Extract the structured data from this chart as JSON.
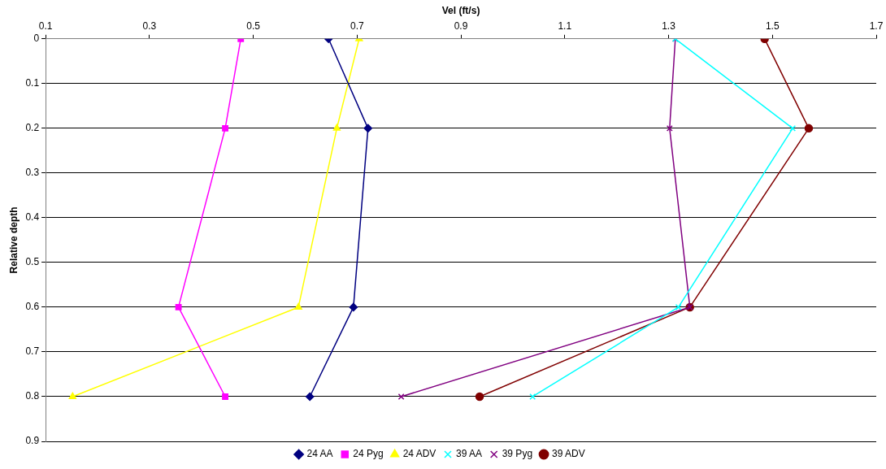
{
  "chart_data": {
    "type": "line",
    "xlabel": "Vel (ft/s)",
    "ylabel": "Relative depth",
    "xlim": [
      0.1,
      1.7
    ],
    "xticks": [
      0.1,
      0.3,
      0.5,
      0.7,
      0.9,
      1.1,
      1.3,
      1.5,
      1.7
    ],
    "ylim": [
      0.9,
      0
    ],
    "yticks": [
      0,
      0.1,
      0.2,
      0.3,
      0.4,
      0.5,
      0.6,
      0.7,
      0.8,
      0.9
    ],
    "grid": "y",
    "legend": "bottom",
    "line_style": "solid",
    "series": [
      {
        "name": "24 AA",
        "color": "#000080",
        "marker": "diamond",
        "x": [
          0.645,
          0.721,
          0.693,
          0.609
        ],
        "values": [
          0,
          0.2,
          0.6,
          0.8
        ]
      },
      {
        "name": "24 Pyg",
        "color": "#ff00ff",
        "marker": "square",
        "x": [
          0.476,
          0.446,
          0.356,
          0.446
        ],
        "values": [
          0,
          0.2,
          0.6,
          0.8
        ]
      },
      {
        "name": "24 ADV",
        "color": "#ffff00",
        "marker": "triangle",
        "x": [
          0.704,
          0.661,
          0.587,
          0.152
        ],
        "values": [
          0,
          0.2,
          0.6,
          0.8
        ]
      },
      {
        "name": "39 AA",
        "color": "#00ffff",
        "marker": "cross",
        "x": [
          1.313,
          1.539,
          1.319,
          1.038
        ],
        "values": [
          0,
          0.2,
          0.6,
          0.8
        ]
      },
      {
        "name": "39 Pyg",
        "color": "#800080",
        "marker": "cross",
        "x": [
          1.313,
          1.302,
          1.341,
          0.785
        ],
        "values": [
          0,
          0.2,
          0.6,
          0.8
        ]
      },
      {
        "name": "39 ADV",
        "color": "#800000",
        "marker": "circle",
        "x": [
          1.485,
          1.57,
          1.341,
          0.936
        ],
        "values": [
          0,
          0.2,
          0.6,
          0.8
        ]
      }
    ]
  }
}
